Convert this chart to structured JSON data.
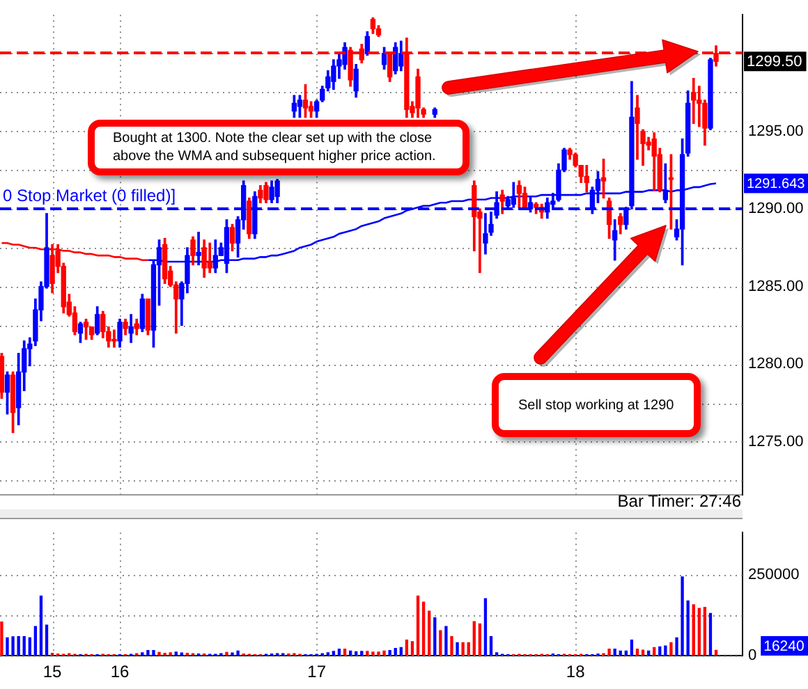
{
  "chart_data": [
    {
      "type": "candlestick",
      "categories": [
        null,
        null,
        null,
        null,
        null,
        null,
        null,
        null,
        null,
        "15",
        null,
        null,
        null,
        null,
        null,
        null,
        null,
        null,
        null,
        null,
        null,
        "16",
        null,
        null,
        null,
        null,
        null,
        null,
        null,
        null,
        null,
        null,
        null,
        null,
        null,
        null,
        null,
        null,
        null,
        null,
        null,
        null,
        null,
        null,
        null,
        null,
        null,
        null,
        null,
        null,
        null,
        null,
        null,
        null,
        null,
        null,
        "17",
        null,
        null,
        null,
        null,
        null,
        null,
        null,
        null,
        null,
        null,
        null,
        null,
        null,
        null,
        null,
        null,
        null,
        null,
        null,
        null,
        null,
        null,
        null,
        null,
        null,
        null,
        null,
        null,
        null,
        null,
        null,
        null,
        null,
        null,
        null,
        null,
        null,
        null,
        null,
        null,
        null,
        null,
        null,
        null,
        null,
        "18",
        null,
        null,
        null,
        null,
        null,
        null,
        null,
        null,
        null,
        null,
        null,
        null,
        null,
        null,
        null,
        null,
        null,
        null,
        null,
        null,
        null,
        null,
        null,
        null,
        null
      ],
      "ohlc": [
        [
          1280.5,
          1280.7,
          1277.8,
          1278.2
        ],
        [
          1278.2,
          1279.5,
          1276.8,
          1279.3
        ],
        [
          1279.3,
          1279.5,
          1275.6,
          1276.9
        ],
        [
          1277.2,
          1280.7,
          1276.1,
          1279.5
        ],
        [
          1279.5,
          1281.5,
          1278.3,
          1281.0
        ],
        [
          1281.0,
          1281.7,
          1279.9,
          1281.3
        ],
        [
          1281.5,
          1284.2,
          1281.2,
          1283.5
        ],
        [
          1283.5,
          1285.3,
          1282.8,
          1285.0
        ],
        [
          1285.0,
          1289.7,
          1284.9,
          1287.5
        ],
        [
          1287.0,
          1287.7,
          1284.6,
          1285.2
        ],
        [
          1287.3,
          1287.7,
          1285.9,
          1286.3
        ],
        [
          1286.3,
          1286.5,
          1283.3,
          1283.7
        ],
        [
          1284.0,
          1284.5,
          1283.1,
          1283.2
        ],
        [
          1283.3,
          1283.7,
          1281.9,
          1282.1
        ],
        [
          1282.0,
          1282.7,
          1281.4,
          1282.6
        ],
        [
          1282.7,
          1282.9,
          1281.6,
          1282.4
        ],
        [
          1282.4,
          1282.4,
          1281.6,
          1281.9
        ],
        [
          1282.0,
          1283.7,
          1281.9,
          1283.2
        ],
        [
          1283.2,
          1283.4,
          1281.7,
          1282.1
        ],
        [
          1282.1,
          1282.4,
          1281.1,
          1281.5
        ],
        [
          1281.6,
          1282.2,
          1281.1,
          1281.5
        ],
        [
          1281.5,
          1282.9,
          1281.1,
          1282.7
        ],
        [
          1282.7,
          1282.9,
          1281.9,
          1282.3
        ],
        [
          1282.0,
          1283.2,
          1281.4,
          1282.4
        ],
        [
          1282.6,
          1282.9,
          1281.9,
          1282.3
        ],
        [
          1282.3,
          1284.5,
          1282.1,
          1284.2
        ],
        [
          1284.2,
          1284.2,
          1281.9,
          1282.2
        ],
        [
          1282.2,
          1286.7,
          1281.1,
          1286.4
        ],
        [
          1286.4,
          1288.0,
          1283.8,
          1287.5
        ],
        [
          1287.7,
          1288.1,
          1285.2,
          1285.5
        ],
        [
          1286.0,
          1286.3,
          1285.0,
          1285.1
        ],
        [
          1285.1,
          1285.3,
          1282.0,
          1284.2
        ],
        [
          1284.2,
          1285.3,
          1282.5,
          1285.2
        ],
        [
          1285.2,
          1287.5,
          1284.6,
          1287.0
        ],
        [
          1288.0,
          1288.2,
          1286.4,
          1287.0
        ],
        [
          1287.0,
          1288.5,
          1286.4,
          1287.2
        ],
        [
          1287.5,
          1288.0,
          1285.6,
          1286.2
        ],
        [
          1286.6,
          1287.8,
          1285.9,
          1286.2
        ],
        [
          1286.2,
          1288.0,
          1285.9,
          1287.0
        ],
        [
          1287.0,
          1287.8,
          1287.0,
          1287.5
        ],
        [
          1286.5,
          1289.3,
          1285.9,
          1288.8
        ],
        [
          1288.8,
          1289.0,
          1287.3,
          1287.8
        ],
        [
          1287.8,
          1289.5,
          1286.9,
          1289.3
        ],
        [
          1289.3,
          1291.8,
          1288.7,
          1291.5
        ],
        [
          1290.5,
          1290.7,
          1288.1,
          1288.4
        ],
        [
          1288.4,
          1291.1,
          1288.1,
          1290.8
        ],
        [
          1291.2,
          1291.5,
          1290.4,
          1290.7
        ],
        [
          1291.5,
          1291.7,
          1290.4,
          1290.6
        ],
        [
          1290.6,
          1291.8,
          1290.4,
          1291.4
        ],
        [
          1290.8,
          1291.9,
          1290.4,
          1291.8
        ],
        null,
        null,
        [
          1296.3,
          1297.3,
          1295.9,
          1296.8
        ],
        [
          1296.6,
          1297.3,
          1295.9,
          1297.0
        ],
        [
          1297.0,
          1298.0,
          1295.9,
          1296.5
        ],
        [
          1296.6,
          1296.9,
          1295.9,
          1296.3
        ],
        [
          1296.3,
          1297.0,
          1295.9,
          1296.9
        ],
        [
          1297.0,
          1297.9,
          1296.9,
          1297.7
        ],
        [
          1297.8,
          1298.9,
          1297.6,
          1298.5
        ],
        [
          1298.2,
          1299.6,
          1297.7,
          1299.2
        ],
        [
          1299.2,
          1300.0,
          1298.4,
          1299.6
        ],
        [
          1299.3,
          1300.7,
          1299.0,
          1300.4
        ],
        [
          1300.2,
          1300.4,
          1297.9,
          1298.3
        ],
        [
          1297.6,
          1299.3,
          1297.2,
          1299.0
        ],
        [
          1300.3,
          1300.6,
          1299.4,
          1299.6
        ],
        [
          1300.0,
          1301.4,
          1299.9,
          1301.1
        ],
        [
          1302.2,
          1302.3,
          1301.3,
          1301.6
        ],
        [
          1301.6,
          1301.8,
          1301.1,
          1301.2
        ],
        [
          1299.3,
          1300.4,
          1299.0,
          1300.0
        ],
        [
          1300.0,
          1300.1,
          1298.2,
          1298.5
        ],
        [
          1298.9,
          1300.7,
          1298.7,
          1300.4
        ],
        [
          1299.2,
          1300.8,
          1298.9,
          1300.0
        ],
        [
          1300.0,
          1301.0,
          1295.9,
          1296.4
        ],
        [
          1296.6,
          1296.9,
          1295.9,
          1296.2
        ],
        [
          1298.5,
          1299.0,
          1295.9,
          1296.5
        ],
        [
          1296.4,
          1296.5,
          1295.9,
          1296.1
        ],
        null,
        [
          1296.1,
          1296.5,
          1295.9,
          1296.4
        ],
        null,
        null,
        null,
        null,
        null,
        null,
        [
          1291.5,
          1291.8,
          1287.3,
          1289.5
        ],
        [
          1289.8,
          1290.0,
          1285.9,
          1289.4
        ],
        [
          1287.8,
          1289.7,
          1287.1,
          1288.4
        ],
        [
          1288.5,
          1289.8,
          1288.3,
          1289.0
        ],
        [
          1289.6,
          1291.1,
          1289.4,
          1290.4
        ],
        [
          1290.9,
          1291.2,
          1289.7,
          1290.5
        ],
        [
          1290.2,
          1290.8,
          1290.0,
          1290.6
        ],
        [
          1290.3,
          1291.7,
          1290.1,
          1290.7
        ],
        [
          1291.5,
          1291.8,
          1290.1,
          1291.0
        ],
        [
          1291.0,
          1291.4,
          1290.0,
          1290.1
        ],
        [
          1290.0,
          1290.8,
          1289.8,
          1290.4
        ],
        [
          1290.3,
          1290.4,
          1289.7,
          1290.1
        ],
        [
          1290.1,
          1290.3,
          1289.4,
          1289.8
        ],
        [
          1289.8,
          1290.7,
          1289.4,
          1290.4
        ],
        [
          1290.3,
          1291.0,
          1290.1,
          1290.5
        ],
        [
          1290.6,
          1292.9,
          1290.5,
          1292.5
        ],
        [
          1292.5,
          1293.9,
          1292.4,
          1293.8
        ],
        [
          1293.8,
          1293.9,
          1293.2,
          1293.5
        ],
        [
          1293.5,
          1293.6,
          1292.7,
          1292.8
        ],
        [
          1292.8,
          1292.8,
          1291.7,
          1292.1
        ],
        [
          1292.1,
          1292.8,
          1291.1,
          1291.7
        ],
        [
          1290.0,
          1291.4,
          1289.7,
          1291.2
        ],
        [
          1291.2,
          1292.4,
          1290.4,
          1291.9
        ],
        [
          1292.0,
          1293.2,
          1290.7,
          1291.8
        ],
        [
          1290.5,
          1290.7,
          1288.1,
          1289.0
        ],
        [
          1288.0,
          1289.3,
          1286.7,
          1288.6
        ],
        [
          1289.5,
          1289.7,
          1288.4,
          1289.0
        ],
        [
          1289.0,
          1290.1,
          1288.7,
          1290.0
        ],
        [
          1290.2,
          1298.2,
          1290.0,
          1295.9
        ],
        [
          1296.5,
          1297.3,
          1293.2,
          1295.5
        ],
        [
          1295.0,
          1295.1,
          1292.8,
          1294.2
        ],
        [
          1294.3,
          1294.6,
          1293.8,
          1294.1
        ],
        [
          1294.5,
          1294.9,
          1291.2,
          1293.4
        ],
        [
          1293.5,
          1293.9,
          1291.1,
          1291.2
        ],
        [
          1290.6,
          1292.9,
          1290.4,
          1291.2
        ],
        [
          1292.0,
          1293.5,
          1288.7,
          1291.9
        ],
        [
          1288.2,
          1289.3,
          1288.0,
          1288.7
        ],
        [
          1288.7,
          1294.5,
          1286.4,
          1293.5
        ],
        [
          1293.6,
          1297.6,
          1293.4,
          1296.8
        ],
        [
          1297.5,
          1298.4,
          1295.5,
          1297.0
        ],
        [
          1297.0,
          1297.9,
          1295.3,
          1296.8
        ],
        [
          1296.8,
          1297.0,
          1294.1,
          1295.2
        ],
        [
          1295.2,
          1299.7,
          1295.1,
          1299.6
        ],
        [
          1300.0,
          1300.5,
          1299.2,
          1299.5
        ]
      ],
      "colors": [
        "#ff0000",
        "#0000ff",
        "#ff0000",
        "#0000ff",
        "#0000ff",
        "#0000ff",
        "#0000ff",
        "#0000ff",
        "#0000ff",
        "#ff0000",
        "#ff0000",
        "#ff0000",
        "#ff0000",
        "#ff0000",
        "#0000ff",
        "#ff0000",
        "#ff0000",
        "#0000ff",
        "#ff0000",
        "#ff0000",
        "#ff0000",
        "#0000ff",
        "#ff0000",
        "#0000ff",
        "#ff0000",
        "#0000ff",
        "#ff0000",
        "#0000ff",
        "#0000ff",
        "#ff0000",
        "#ff0000",
        "#ff0000",
        "#0000ff",
        "#0000ff",
        "#ff0000",
        "#0000ff",
        "#ff0000",
        "#ff0000",
        "#0000ff",
        "#0000ff",
        "#0000ff",
        "#ff0000",
        "#0000ff",
        "#0000ff",
        "#ff0000",
        "#0000ff",
        "#ff0000",
        "#ff0000",
        "#0000ff",
        "#0000ff",
        null,
        null,
        "#0000ff",
        "#0000ff",
        "#ff0000",
        "#ff0000",
        "#0000ff",
        "#0000ff",
        "#0000ff",
        "#0000ff",
        "#0000ff",
        "#0000ff",
        "#ff0000",
        "#0000ff",
        "#ff0000",
        "#0000ff",
        "#ff0000",
        "#ff0000",
        "#0000ff",
        "#ff0000",
        "#0000ff",
        "#0000ff",
        "#ff0000",
        "#ff0000",
        "#ff0000",
        "#ff0000",
        null,
        "#0000ff",
        null,
        null,
        null,
        null,
        null,
        null,
        "#ff0000",
        "#ff0000",
        "#0000ff",
        "#0000ff",
        "#0000ff",
        "#ff0000",
        "#0000ff",
        "#0000ff",
        "#ff0000",
        "#ff0000",
        "#0000ff",
        "#ff0000",
        "#ff0000",
        "#0000ff",
        "#0000ff",
        "#0000ff",
        "#0000ff",
        "#ff0000",
        "#ff0000",
        "#ff0000",
        "#ff0000",
        "#0000ff",
        "#0000ff",
        "#ff0000",
        "#ff0000",
        "#0000ff",
        "#ff0000",
        "#0000ff",
        "#0000ff",
        "#ff0000",
        "#ff0000",
        "#ff0000",
        "#ff0000",
        "#ff0000",
        "#0000ff",
        "#ff0000",
        "#0000ff",
        "#0000ff",
        "#0000ff",
        "#ff0000",
        "#ff0000",
        "#ff0000",
        "#0000ff",
        "#ff0000"
      ],
      "series": [
        {
          "type": "line",
          "color": "#ff0000",
          "values": [
            1287.8,
            1287.8,
            1287.7,
            1287.7,
            1287.6,
            1287.5,
            1287.5,
            1287.4,
            1287.4,
            1287.4,
            1287.4,
            1287.3,
            1287.3,
            1287.2,
            1287.2,
            1287.1,
            1287.1,
            1287.0,
            1287.0,
            1287.0,
            1286.9,
            1286.9,
            1286.8,
            1286.8,
            1286.8,
            1286.7,
            1286.7,
            null,
            null,
            null,
            null,
            null,
            null,
            null,
            null,
            null,
            null,
            null,
            null,
            null,
            null,
            null,
            null,
            null,
            null,
            null,
            null,
            null,
            null,
            null,
            null,
            null,
            null,
            null,
            null,
            null,
            null,
            null,
            null,
            null,
            null,
            null,
            null,
            null,
            null,
            null,
            null,
            null,
            null,
            null,
            null,
            null,
            null,
            null,
            null,
            null,
            null,
            null,
            null,
            null,
            null,
            null,
            null,
            null,
            null,
            null,
            null,
            null,
            null,
            null,
            null,
            null,
            null,
            null,
            null,
            null,
            null,
            null,
            null,
            null,
            null,
            null,
            null,
            null,
            null,
            null,
            null,
            null,
            null,
            null,
            null,
            null,
            null,
            null,
            null,
            null,
            null,
            null,
            null,
            null,
            null,
            null,
            null,
            null,
            null,
            null,
            null,
            null
          ]
        },
        {
          "type": "line",
          "color": "#0000ff",
          "values": [
            null,
            null,
            null,
            null,
            null,
            null,
            null,
            null,
            null,
            null,
            null,
            null,
            null,
            null,
            null,
            null,
            null,
            null,
            null,
            null,
            null,
            null,
            null,
            null,
            null,
            null,
            1286.7,
            1286.7,
            1286.7,
            1286.6,
            1286.6,
            1286.6,
            1286.6,
            1286.6,
            1286.6,
            1286.6,
            1286.6,
            1286.6,
            1286.6,
            1286.7,
            1286.7,
            1286.7,
            1286.7,
            1286.8,
            1286.8,
            1286.8,
            1286.9,
            1286.9,
            1287.0,
            1287.0,
            1287.1,
            1287.2,
            1287.3,
            1287.5,
            1287.6,
            1287.7,
            1287.9,
            1288.0,
            1288.1,
            1288.2,
            1288.4,
            1288.5,
            1288.6,
            1288.7,
            1288.9,
            1289.0,
            1289.1,
            1289.2,
            1289.4,
            1289.5,
            1289.6,
            1289.7,
            1289.9,
            1290.0,
            1290.1,
            1290.2,
            1290.2,
            1290.3,
            1290.4,
            1290.4,
            1290.5,
            1290.5,
            1290.5,
            1290.6,
            1290.6,
            1290.6,
            1290.6,
            1290.7,
            1290.7,
            1290.7,
            1290.7,
            1290.8,
            1290.8,
            1290.8,
            1290.8,
            1290.8,
            1290.9,
            1290.9,
            1290.9,
            1290.9,
            1290.9,
            1290.9,
            1290.9,
            1290.9,
            1291.0,
            1291.0,
            1291.0,
            1291.0,
            1291.0,
            1291.0,
            1291.0,
            1291.1,
            1291.1,
            1291.1,
            1291.1,
            1291.2,
            1291.2,
            1291.2,
            1291.2,
            1291.1,
            1291.2,
            1291.2,
            1291.3,
            1291.4,
            1291.4,
            1291.5,
            1291.6,
            1291.643
          ]
        }
      ],
      "ylim": [
        1271.6,
        1302.5
      ],
      "yticks": [
        {
          "value": 1272.5,
          "label": null
        },
        {
          "value": 1275,
          "label": "1275.00"
        },
        {
          "value": 1277.5,
          "label": null
        },
        {
          "value": 1280,
          "label": "1280.00"
        },
        {
          "value": 1282.5,
          "label": null
        },
        {
          "value": 1285,
          "label": "1285.00"
        },
        {
          "value": 1287.5,
          "label": null
        },
        {
          "value": 1290,
          "label": "1290.00"
        },
        {
          "value": 1292.5,
          "label": null
        },
        {
          "value": 1295,
          "label": "1295.00"
        },
        {
          "value": 1297.5,
          "label": null
        },
        {
          "value": 1300,
          "label": null
        }
      ],
      "grid": true,
      "tick_labels": "y",
      "ref_lines": [
        {
          "axis": "y",
          "value": 1300,
          "color": "#ff0000",
          "line_style": "dashed"
        },
        {
          "axis": "y",
          "value": 1290,
          "label": "0 Stop Market (0 filled)]",
          "color": "#0000ff",
          "line_style": "dashed"
        }
      ],
      "annotations": [
        "Bought at 1300. Note the clear set up with the close above the WMA and subsequent higher price action.",
        "Sell stop working at 1290",
        "Bar Timer: 27:46",
        "1299.50",
        "1291.643"
      ]
    },
    {
      "type": "bar",
      "categories": [
        null,
        null,
        null,
        null,
        null,
        null,
        null,
        null,
        null,
        "15",
        null,
        null,
        null,
        null,
        null,
        null,
        null,
        null,
        null,
        null,
        null,
        "16",
        null,
        null,
        null,
        null,
        null,
        null,
        null,
        null,
        null,
        null,
        null,
        null,
        null,
        null,
        null,
        null,
        null,
        null,
        null,
        null,
        null,
        null,
        null,
        null,
        null,
        null,
        null,
        null,
        null,
        null,
        null,
        null,
        null,
        null,
        "17",
        null,
        null,
        null,
        null,
        null,
        null,
        null,
        null,
        null,
        null,
        null,
        null,
        null,
        null,
        null,
        null,
        null,
        null,
        null,
        null,
        null,
        null,
        null,
        null,
        null,
        null,
        null,
        null,
        null,
        null,
        null,
        null,
        null,
        null,
        null,
        null,
        null,
        null,
        null,
        null,
        null,
        null,
        null,
        null,
        null,
        "18",
        null,
        null,
        null,
        null,
        null,
        null,
        null,
        null,
        null,
        null,
        null,
        null,
        null,
        null,
        null,
        null,
        null,
        null,
        null,
        null,
        null,
        null,
        null,
        null,
        null
      ],
      "values": [
        104000,
        55000,
        58000,
        59000,
        59000,
        55000,
        90000,
        184000,
        94000,
        7000,
        5000,
        4000,
        6000,
        4000,
        3000,
        4000,
        3000,
        3000,
        4000,
        3000,
        3000,
        3000,
        3000,
        4000,
        6000,
        9000,
        16000,
        16000,
        10000,
        7000,
        9000,
        11000,
        8000,
        7000,
        6000,
        5000,
        5000,
        4000,
        4000,
        6000,
        10000,
        8000,
        14000,
        5000,
        4000,
        3000,
        3000,
        4000,
        5000,
        6000,
        6000,
        5000,
        6000,
        4000,
        3000,
        3000,
        4000,
        6000,
        9000,
        13000,
        20000,
        20000,
        14000,
        12000,
        13000,
        13000,
        11000,
        11000,
        14000,
        16000,
        22000,
        25000,
        48000,
        43000,
        184000,
        165000,
        137000,
        117000,
        77000,
        90000,
        59000,
        40000,
        40000,
        40000,
        105000,
        98000,
        176000,
        59000,
        9000,
        4000,
        3000,
        3000,
        4000,
        3000,
        3000,
        3000,
        4000,
        3000,
        5000,
        3000,
        4000,
        3000,
        3000,
        4000,
        3000,
        3000,
        5000,
        6000,
        20000,
        20000,
        14000,
        14000,
        48000,
        20000,
        17000,
        14000,
        25000,
        27000,
        30000,
        40000,
        55000,
        243000,
        169000,
        157000,
        146000,
        149000,
        130000,
        16240
      ],
      "colors": [
        "#ff0000",
        "#0000ff",
        "#0000ff",
        "#0000ff",
        "#0000ff",
        "#0000ff",
        "#0000ff",
        "#0000ff",
        "#0000ff",
        "#ff0000",
        "#ff0000",
        "#ff0000",
        "#ff0000",
        "#ff0000",
        "#0000ff",
        "#ff0000",
        "#ff0000",
        "#0000ff",
        "#ff0000",
        "#ff0000",
        "#ff0000",
        "#0000ff",
        "#ff0000",
        "#0000ff",
        "#ff0000",
        "#0000ff",
        "#0000ff",
        "#0000ff",
        "#ff0000",
        "#ff0000",
        "#ff0000",
        "#0000ff",
        "#0000ff",
        "#ff0000",
        "#ff0000",
        "#0000ff",
        "#ff0000",
        "#0000ff",
        "#0000ff",
        "#0000ff",
        "#ff0000",
        "#0000ff",
        "#0000ff",
        "#ff0000",
        "#ff0000",
        "#ff0000",
        "#ff0000",
        "#0000ff",
        "#0000ff",
        "#0000ff",
        "#0000ff",
        "#ff0000",
        "#ff0000",
        "#ff0000",
        "#0000ff",
        "#0000ff",
        "#0000ff",
        "#0000ff",
        "#0000ff",
        "#0000ff",
        "#0000ff",
        "#ff0000",
        "#0000ff",
        "#0000ff",
        "#0000ff",
        "#ff0000",
        "#ff0000",
        "#ff0000",
        "#ff0000",
        "#0000ff",
        "#0000ff",
        "#0000ff",
        "#ff0000",
        "#ff0000",
        "#ff0000",
        "#ff0000",
        "#ff0000",
        "#0000ff",
        "#ff0000",
        "#0000ff",
        "#ff0000",
        "#0000ff",
        "#ff0000",
        "#ff0000",
        "#ff0000",
        "#ff0000",
        "#0000ff",
        "#0000ff",
        "#0000ff",
        "#0000ff",
        "#0000ff",
        "#ff0000",
        "#ff0000",
        "#ff0000",
        "#ff0000",
        "#ff0000",
        "#ff0000",
        "#ff0000",
        "#0000ff",
        "#0000ff",
        "#ff0000",
        "#ff0000",
        "#ff0000",
        "#ff0000",
        "#0000ff",
        "#0000ff",
        "#0000ff",
        "#ff0000",
        "#ff0000",
        "#0000ff",
        "#0000ff",
        "#0000ff",
        "#0000ff",
        "#ff0000",
        "#ff0000",
        "#0000ff",
        "#ff0000",
        "#0000ff",
        "#0000ff",
        "#ff0000",
        "#0000ff",
        "#0000ff",
        "#0000ff",
        "#ff0000",
        "#ff0000",
        "#ff0000",
        "#0000ff",
        "#ff0000"
      ],
      "ylim": [
        0,
        380000
      ],
      "yticks": [
        {
          "value": 0,
          "label": "0"
        },
        {
          "value": 125000,
          "label": null
        },
        {
          "value": 250000,
          "label": "250000"
        }
      ],
      "grid": true,
      "annotations": [
        "16240"
      ]
    }
  ]
}
